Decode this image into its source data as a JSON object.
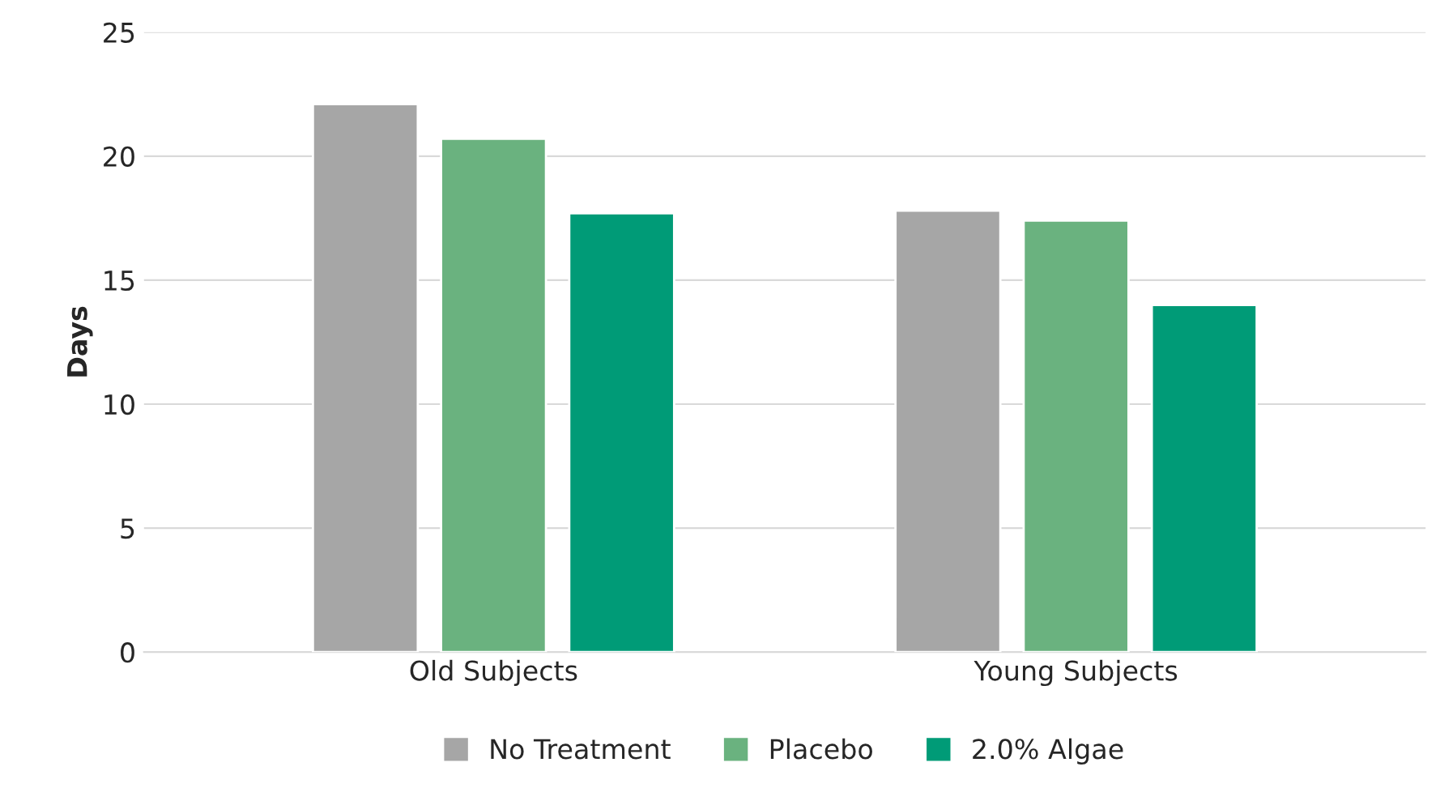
{
  "chart_data": {
    "type": "bar",
    "ylabel": "Days",
    "categories": [
      "Old Subjects",
      "Young Subjects"
    ],
    "series": [
      {
        "name": "No Treatment",
        "color": "#a6a6a6",
        "values": [
          22.1,
          17.8
        ]
      },
      {
        "name": "Placebo",
        "color": "#6ab27f",
        "values": [
          20.7,
          17.4
        ]
      },
      {
        "name": "2.0% Algae",
        "color": "#009b77",
        "values": [
          17.7,
          14.0
        ]
      }
    ],
    "ylim": [
      0,
      25
    ],
    "yticks": [
      0,
      5,
      10,
      15,
      20,
      25
    ],
    "grid": "y",
    "legend": "bottom"
  }
}
